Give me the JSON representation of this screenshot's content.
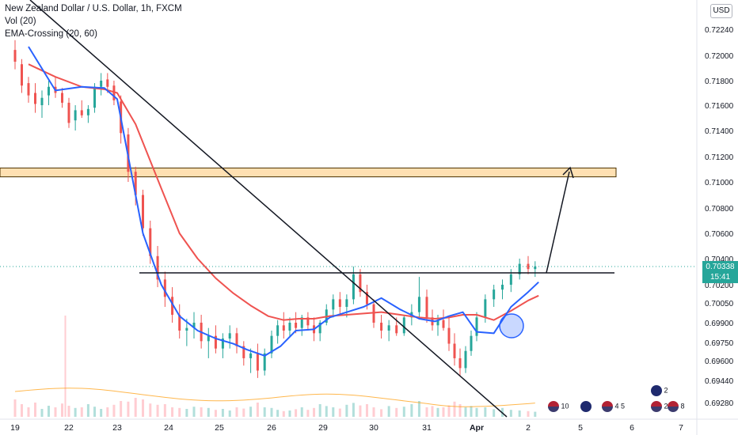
{
  "chart_data": {
    "type": "candlestick",
    "symbol_title": "New Zealand Dollar / U.S. Dollar, 1h, FXCM",
    "indicators": [
      "Vol (20)",
      "EMA-Crossing (20, 60)"
    ],
    "currency": "USD",
    "current_price": "0.70338",
    "countdown": "15:41",
    "y_ticks": [
      "0.72240",
      "0.72000",
      "0.71800",
      "0.71600",
      "0.71400",
      "0.71200",
      "0.71000",
      "0.70800",
      "0.70600",
      "0.70400",
      "0.70200",
      "0.70050",
      "0.69900",
      "0.69750",
      "0.69600",
      "0.69440",
      "0.69280"
    ],
    "x_ticks": [
      "19",
      "22",
      "23",
      "24",
      "25",
      "26",
      "29",
      "30",
      "31",
      "Apr",
      "2",
      "5",
      "6",
      "7"
    ],
    "event_labels": [
      "10",
      "4",
      "5",
      "2",
      "2",
      "8"
    ],
    "colors": {
      "up": "#26a69a",
      "down": "#ef5350",
      "ema_fast": "#2962ff",
      "ema_slow": "#ef5350",
      "volume_ma": "#ff9800",
      "zone_fill": "#ffe0b2",
      "zone_border": "#4a3000",
      "highlight": "#2962ff"
    },
    "ema_fast_points": [
      [
        0.4,
        0.7208
      ],
      [
        1.2,
        0.7172
      ],
      [
        2.0,
        0.7175
      ],
      [
        2.7,
        0.7174
      ],
      [
        3.1,
        0.7165
      ],
      [
        3.4,
        0.712
      ],
      [
        3.8,
        0.706
      ],
      [
        4.3,
        0.702
      ],
      [
        4.8,
        0.6995
      ],
      [
        5.3,
        0.6984
      ],
      [
        5.8,
        0.6978
      ],
      [
        6.3,
        0.6974
      ],
      [
        6.7,
        0.6969
      ],
      [
        7.2,
        0.6964
      ],
      [
        7.7,
        0.6972
      ],
      [
        8.2,
        0.6984
      ],
      [
        8.8,
        0.6985
      ],
      [
        9.3,
        0.6994
      ],
      [
        9.8,
        0.6998
      ],
      [
        10.3,
        0.7002
      ],
      [
        10.8,
        0.7009
      ],
      [
        11.3,
        0.7
      ],
      [
        11.8,
        0.6993
      ],
      [
        12.3,
        0.6991
      ],
      [
        12.8,
        0.6995
      ],
      [
        13.3,
        0.6998
      ],
      [
        13.8,
        0.6983
      ],
      [
        14.2,
        0.6982
      ],
      [
        14.6,
        0.7002
      ],
      [
        15.0,
        0.7014
      ],
      [
        15.3,
        0.7022
      ]
    ],
    "ema_slow_points": [
      [
        0.4,
        0.7193
      ],
      [
        1.2,
        0.7183
      ],
      [
        2.0,
        0.7175
      ],
      [
        2.7,
        0.7173
      ],
      [
        3.1,
        0.717
      ],
      [
        3.6,
        0.7145
      ],
      [
        4.3,
        0.7095
      ],
      [
        4.8,
        0.706
      ],
      [
        5.3,
        0.704
      ],
      [
        5.8,
        0.7025
      ],
      [
        6.3,
        0.7013
      ],
      [
        6.8,
        0.7003
      ],
      [
        7.3,
        0.6995
      ],
      [
        7.8,
        0.6992
      ],
      [
        8.3,
        0.6993
      ],
      [
        8.8,
        0.6993
      ],
      [
        9.3,
        0.6995
      ],
      [
        9.8,
        0.6996
      ],
      [
        10.3,
        0.6997
      ],
      [
        10.8,
        0.6998
      ],
      [
        11.3,
        0.6996
      ],
      [
        11.8,
        0.6994
      ],
      [
        12.3,
        0.6993
      ],
      [
        12.8,
        0.6994
      ],
      [
        13.3,
        0.6996
      ],
      [
        13.8,
        0.6996
      ],
      [
        14.2,
        0.6992
      ],
      [
        14.6,
        0.6999
      ],
      [
        15.0,
        0.7007
      ],
      [
        15.3,
        0.7011
      ]
    ],
    "trendline_start": [
      -0.2,
      0.7248
    ],
    "trendline_end": [
      14.5,
      0.6922
    ],
    "neckline_start": [
      3.9,
      0.7029
    ],
    "neckline_end": [
      17.4,
      0.7029
    ],
    "resistance_zone": [
      0.7104,
      0.7111
    ],
    "forecast_arrow_start": [
      15.2,
      0.7029
    ],
    "forecast_arrow_end": [
      15.9,
      0.711
    ],
    "highlight_circle_center": [
      14.3,
      0.6987
    ],
    "candles": [
      [
        0.0,
        0.7205,
        0.7214,
        0.7189,
        0.7195
      ],
      [
        0.2,
        0.7193,
        0.7197,
        0.717,
        0.7176
      ],
      [
        0.4,
        0.7178,
        0.7183,
        0.7162,
        0.7168
      ],
      [
        0.6,
        0.717,
        0.7178,
        0.7154,
        0.7161
      ],
      [
        0.8,
        0.716,
        0.7172,
        0.715,
        0.7166
      ],
      [
        1.0,
        0.7168,
        0.718,
        0.716,
        0.7175
      ],
      [
        1.2,
        0.7175,
        0.7183,
        0.7166,
        0.717
      ],
      [
        1.4,
        0.717,
        0.7174,
        0.7158,
        0.7162
      ],
      [
        1.6,
        0.7162,
        0.7166,
        0.7142,
        0.7146
      ],
      [
        1.8,
        0.7148,
        0.716,
        0.714,
        0.7156
      ],
      [
        2.0,
        0.7156,
        0.7164,
        0.715,
        0.7152
      ],
      [
        2.2,
        0.7152,
        0.716,
        0.7146,
        0.7157
      ],
      [
        2.4,
        0.7158,
        0.7178,
        0.7154,
        0.7175
      ],
      [
        2.6,
        0.7175,
        0.7186,
        0.7168,
        0.718
      ],
      [
        2.8,
        0.7181,
        0.7186,
        0.717,
        0.7175
      ],
      [
        3.0,
        0.7176,
        0.718,
        0.716,
        0.7164
      ],
      [
        3.2,
        0.7163,
        0.7168,
        0.713,
        0.7138
      ],
      [
        3.4,
        0.7137,
        0.7142,
        0.71,
        0.7108
      ],
      [
        3.6,
        0.7108,
        0.7112,
        0.7082,
        0.709
      ],
      [
        3.8,
        0.709,
        0.7094,
        0.7058,
        0.7064
      ],
      [
        4.0,
        0.7064,
        0.707,
        0.7036,
        0.7042
      ],
      [
        4.2,
        0.7042,
        0.705,
        0.7018,
        0.7024
      ],
      [
        4.4,
        0.7024,
        0.703,
        0.7002,
        0.701
      ],
      [
        4.6,
        0.701,
        0.7018,
        0.699,
        0.6996
      ],
      [
        4.8,
        0.6996,
        0.7004,
        0.6978,
        0.6984
      ],
      [
        5.0,
        0.6984,
        0.6993,
        0.6972,
        0.6986
      ],
      [
        5.2,
        0.6986,
        0.6998,
        0.6978,
        0.699
      ],
      [
        5.4,
        0.699,
        0.6996,
        0.697,
        0.6976
      ],
      [
        5.6,
        0.6976,
        0.6986,
        0.6962,
        0.698
      ],
      [
        5.8,
        0.698,
        0.6988,
        0.6966,
        0.697
      ],
      [
        6.0,
        0.697,
        0.6982,
        0.6962,
        0.6978
      ],
      [
        6.2,
        0.6978,
        0.6988,
        0.697,
        0.6982
      ],
      [
        6.4,
        0.6982,
        0.6986,
        0.6966,
        0.6972
      ],
      [
        6.6,
        0.6972,
        0.6976,
        0.6956,
        0.6962
      ],
      [
        6.8,
        0.6962,
        0.697,
        0.695,
        0.6966
      ],
      [
        7.0,
        0.6966,
        0.6974,
        0.6946,
        0.6952
      ],
      [
        7.2,
        0.6952,
        0.697,
        0.6948,
        0.6966
      ],
      [
        7.4,
        0.6966,
        0.6984,
        0.6962,
        0.698
      ],
      [
        7.6,
        0.698,
        0.6992,
        0.6974,
        0.6988
      ],
      [
        7.8,
        0.6988,
        0.6998,
        0.6978,
        0.6984
      ],
      [
        8.0,
        0.6984,
        0.6994,
        0.698,
        0.699
      ],
      [
        8.2,
        0.699,
        0.6998,
        0.6982,
        0.6986
      ],
      [
        8.4,
        0.6986,
        0.6996,
        0.698,
        0.6994
      ],
      [
        8.6,
        0.6994,
        0.6998,
        0.6984,
        0.6988
      ],
      [
        8.8,
        0.6988,
        0.6994,
        0.6976,
        0.6982
      ],
      [
        9.0,
        0.6982,
        0.6992,
        0.6976,
        0.699
      ],
      [
        9.2,
        0.699,
        0.7004,
        0.6988,
        0.7
      ],
      [
        9.4,
        0.7,
        0.7012,
        0.6994,
        0.7008
      ],
      [
        9.6,
        0.7008,
        0.7014,
        0.6996,
        0.7002
      ],
      [
        9.8,
        0.7002,
        0.7012,
        0.6994,
        0.7008
      ],
      [
        10.0,
        0.7008,
        0.7034,
        0.7004,
        0.7028
      ],
      [
        10.2,
        0.7028,
        0.7032,
        0.701,
        0.7014
      ],
      [
        10.4,
        0.7014,
        0.702,
        0.7,
        0.7004
      ],
      [
        10.6,
        0.7004,
        0.7008,
        0.6986,
        0.699
      ],
      [
        10.8,
        0.699,
        0.6996,
        0.6978,
        0.6984
      ],
      [
        11.0,
        0.6984,
        0.6992,
        0.6976,
        0.6988
      ],
      [
        11.2,
        0.6988,
        0.6994,
        0.698,
        0.6982
      ],
      [
        11.4,
        0.6982,
        0.6996,
        0.698,
        0.6994
      ],
      [
        11.6,
        0.6994,
        0.7004,
        0.6988,
        0.6998
      ],
      [
        11.8,
        0.6998,
        0.7026,
        0.6994,
        0.701
      ],
      [
        12.0,
        0.701,
        0.7016,
        0.699,
        0.6994
      ],
      [
        12.2,
        0.6994,
        0.7,
        0.6984,
        0.6988
      ],
      [
        12.4,
        0.6988,
        0.6996,
        0.698,
        0.6992
      ],
      [
        12.6,
        0.6992,
        0.7,
        0.6984,
        0.6986
      ],
      [
        12.8,
        0.6986,
        0.6994,
        0.6968,
        0.6974
      ],
      [
        13.0,
        0.6974,
        0.6982,
        0.6956,
        0.6962
      ],
      [
        13.2,
        0.6962,
        0.697,
        0.6948,
        0.6954
      ],
      [
        13.4,
        0.6954,
        0.6972,
        0.695,
        0.6968
      ],
      [
        13.6,
        0.6968,
        0.6984,
        0.6964,
        0.698
      ],
      [
        13.8,
        0.698,
        0.6998,
        0.6976,
        0.6994
      ],
      [
        14.0,
        0.6994,
        0.7012,
        0.699,
        0.7008
      ],
      [
        14.2,
        0.7008,
        0.702,
        0.7002,
        0.7016
      ],
      [
        14.4,
        0.7016,
        0.7024,
        0.7008,
        0.702
      ],
      [
        14.6,
        0.702,
        0.7032,
        0.7014,
        0.7028
      ],
      [
        14.8,
        0.7028,
        0.704,
        0.7024,
        0.7036
      ],
      [
        15.0,
        0.7036,
        0.7042,
        0.7028,
        0.7032
      ],
      [
        15.2,
        0.7032,
        0.7038,
        0.7026,
        0.7034
      ]
    ],
    "volumes": [
      [
        0.0,
        0.55
      ],
      [
        0.2,
        0.4
      ],
      [
        0.4,
        0.3
      ],
      [
        0.6,
        0.45
      ],
      [
        0.8,
        0.25
      ],
      [
        1.0,
        0.35
      ],
      [
        1.2,
        0.3
      ],
      [
        1.4,
        0.42
      ],
      [
        1.6,
        0.35
      ],
      [
        1.8,
        0.28
      ],
      [
        2.0,
        0.3
      ],
      [
        2.2,
        0.4
      ],
      [
        2.4,
        0.32
      ],
      [
        2.6,
        0.25
      ],
      [
        2.8,
        0.3
      ],
      [
        3.0,
        0.38
      ],
      [
        3.2,
        0.5
      ],
      [
        3.4,
        0.48
      ],
      [
        3.6,
        0.6
      ],
      [
        3.8,
        0.55
      ],
      [
        4.0,
        0.42
      ],
      [
        4.2,
        0.38
      ],
      [
        4.4,
        0.4
      ],
      [
        4.6,
        0.3
      ],
      [
        4.8,
        0.28
      ],
      [
        5.0,
        0.25
      ],
      [
        5.2,
        0.32
      ],
      [
        5.4,
        0.3
      ],
      [
        5.6,
        0.28
      ],
      [
        5.8,
        0.22
      ],
      [
        6.0,
        0.25
      ],
      [
        6.2,
        0.2
      ],
      [
        6.4,
        0.3
      ],
      [
        6.6,
        0.26
      ],
      [
        6.8,
        0.32
      ],
      [
        7.0,
        0.45
      ],
      [
        7.2,
        0.3
      ],
      [
        7.4,
        0.28
      ],
      [
        7.6,
        0.22
      ],
      [
        7.8,
        0.18
      ],
      [
        8.0,
        0.2
      ],
      [
        8.2,
        0.24
      ],
      [
        8.4,
        0.3
      ],
      [
        8.6,
        0.22
      ],
      [
        8.8,
        0.28
      ],
      [
        9.0,
        0.4
      ],
      [
        9.2,
        0.34
      ],
      [
        9.4,
        0.3
      ],
      [
        9.6,
        0.26
      ],
      [
        9.8,
        0.38
      ],
      [
        10.0,
        0.44
      ],
      [
        10.2,
        0.36
      ],
      [
        10.4,
        0.4
      ],
      [
        10.6,
        0.3
      ],
      [
        10.8,
        0.24
      ],
      [
        11.0,
        0.34
      ],
      [
        11.2,
        0.28
      ],
      [
        11.4,
        0.32
      ],
      [
        11.6,
        0.4
      ],
      [
        11.8,
        0.5
      ],
      [
        12.0,
        0.3
      ],
      [
        12.2,
        0.34
      ],
      [
        12.4,
        0.28
      ],
      [
        12.6,
        0.3
      ],
      [
        12.8,
        0.36
      ],
      [
        13.0,
        0.48
      ],
      [
        13.2,
        0.4
      ],
      [
        13.4,
        0.3
      ],
      [
        13.6,
        0.34
      ],
      [
        13.8,
        0.28
      ],
      [
        14.0,
        0.3
      ],
      [
        14.2,
        0.24
      ],
      [
        14.4,
        0.28
      ],
      [
        14.6,
        0.22
      ],
      [
        14.8,
        0.2
      ],
      [
        15.0,
        0.18
      ],
      [
        15.2,
        0.16
      ]
    ],
    "volume_spike": [
      1.4,
      1.0
    ]
  }
}
